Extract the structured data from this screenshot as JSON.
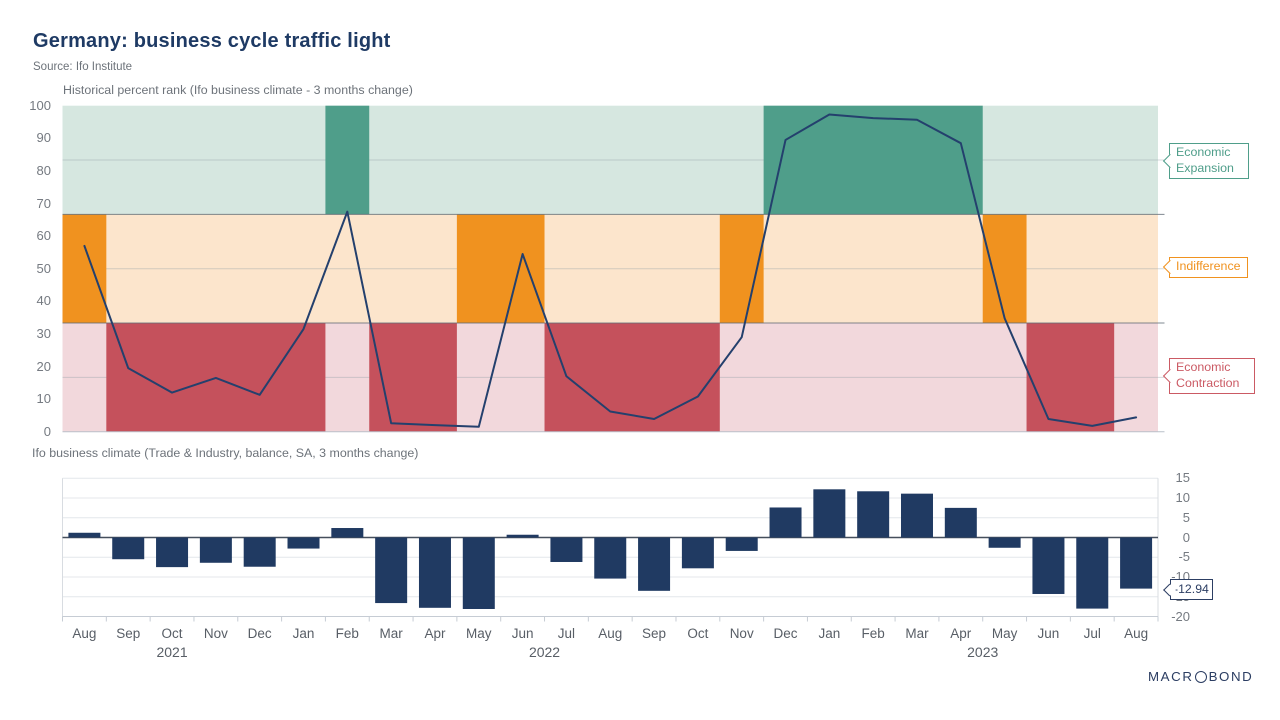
{
  "title": "Germany: business cycle traffic light",
  "source": "Source: Ifo Institute",
  "logo": {
    "text_left": "MACR",
    "text_right": "BOND"
  },
  "zones": {
    "expansion": {
      "label": "Economic Expansion",
      "color": "#4f9e8a",
      "block": "#4f9e8a",
      "bg": "#d6e7e0"
    },
    "indifference": {
      "label": "Indifference",
      "color": "#f0921f",
      "block": "#f0921f",
      "bg": "#fce5cc"
    },
    "contraction": {
      "label": "Economic Contraction",
      "color": "#cb5a64",
      "block": "#c5515c",
      "bg": "#f2d8dc"
    }
  },
  "x_axis": {
    "months": [
      "Aug",
      "Sep",
      "Oct",
      "Nov",
      "Dec",
      "Jan",
      "Feb",
      "Mar",
      "Apr",
      "May",
      "Jun",
      "Jul",
      "Aug",
      "Sep",
      "Oct",
      "Nov",
      "Dec",
      "Jan",
      "Feb",
      "Mar",
      "Apr",
      "May",
      "Jun",
      "Jul",
      "Aug"
    ],
    "years": [
      {
        "label": "2021",
        "from": 0,
        "to": 4
      },
      {
        "label": "2022",
        "from": 5,
        "to": 16
      },
      {
        "label": "2023",
        "from": 17,
        "to": 24
      }
    ]
  },
  "chart_data": [
    {
      "type": "line",
      "title": "Historical percent rank (Ifo business climate - 3 months change)",
      "x": [
        "Aug 2021",
        "Sep 2021",
        "Oct 2021",
        "Nov 2021",
        "Dec 2021",
        "Jan 2022",
        "Feb 2022",
        "Mar 2022",
        "Apr 2022",
        "May 2022",
        "Jun 2022",
        "Jul 2022",
        "Aug 2022",
        "Sep 2022",
        "Oct 2022",
        "Nov 2022",
        "Dec 2022",
        "Jan 2023",
        "Feb 2023",
        "Mar 2023",
        "Apr 2023",
        "May 2023",
        "Jun 2023",
        "Jul 2023",
        "Aug 2023"
      ],
      "values": [
        57,
        19.5,
        12,
        16.5,
        11.3,
        31.5,
        67.5,
        2.6,
        2,
        1.5,
        54.5,
        17,
        6.2,
        3.9,
        10.8,
        29,
        89.5,
        97.3,
        96.2,
        95.7,
        88.5,
        34.8,
        3.9,
        1.8,
        4.4
      ],
      "ylim": [
        0,
        100
      ],
      "yticks": [
        0,
        10,
        20,
        30,
        40,
        50,
        60,
        70,
        80,
        90,
        100
      ],
      "line_color": "#24406d",
      "bands": [
        {
          "zone": "expansion",
          "range": [
            66.67,
            100
          ]
        },
        {
          "zone": "indifference",
          "range": [
            33.33,
            66.67
          ]
        },
        {
          "zone": "contraction",
          "range": [
            0,
            33.33
          ]
        }
      ],
      "month_zone": [
        "indifference",
        "contraction",
        "contraction",
        "contraction",
        "contraction",
        "contraction",
        "expansion",
        "contraction",
        "contraction",
        "indifference",
        "indifference",
        "contraction",
        "contraction",
        "contraction",
        "contraction",
        "indifference",
        "expansion",
        "expansion",
        "expansion",
        "expansion",
        "expansion",
        "indifference",
        "contraction",
        "contraction",
        null
      ]
    },
    {
      "type": "bar",
      "title": "Ifo business climate (Trade & Industry, balance, SA, 3 months change)",
      "values": [
        1.2,
        -5.5,
        -7.5,
        -6.4,
        -7.4,
        -2.8,
        2.4,
        -16.6,
        -17.8,
        -18.1,
        0.7,
        -6.2,
        -10.4,
        -13.5,
        -7.8,
        -3.4,
        7.6,
        12.2,
        11.7,
        11.1,
        7.5,
        -2.6,
        -14.3,
        -18,
        -12.94
      ],
      "ylim": [
        -20,
        15
      ],
      "yticks": [
        15,
        10,
        5,
        0,
        -5,
        -10,
        -15,
        -20
      ],
      "bar_color": "#203a62",
      "last_value_label": "-12.94"
    }
  ]
}
